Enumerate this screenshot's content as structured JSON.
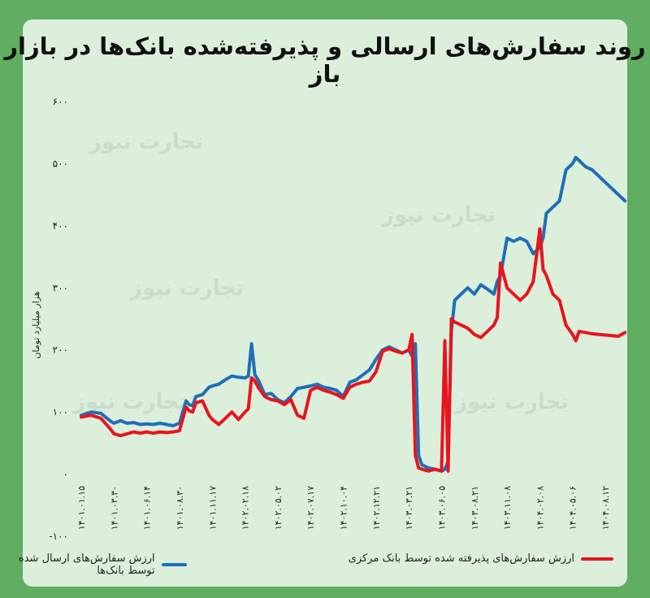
{
  "brand": {
    "watermark": "تجارت نیوز"
  },
  "colors": {
    "sent": "#1f6fb8",
    "accepted": "#e8141e",
    "background": "#5fae62",
    "card": "#dcefdb"
  },
  "chart_data": {
    "type": "line",
    "title": "روند سفارش‌های ارسالی و پذیرفته‌شده بانک‌ها در بازار باز",
    "ylabel": "هزار میلیارد تومان",
    "xlabel": "",
    "ylim": [
      -100,
      600
    ],
    "yticks": [
      {
        "value": -100,
        "label": "-۱۰۰"
      },
      {
        "value": 0,
        "label": "۰"
      },
      {
        "value": 100,
        "label": "۱۰۰"
      },
      {
        "value": 200,
        "label": "۲۰۰"
      },
      {
        "value": 300,
        "label": "۳۰۰"
      },
      {
        "value": 400,
        "label": "۴۰۰"
      },
      {
        "value": 500,
        "label": "۵۰۰"
      },
      {
        "value": 600,
        "label": "۶۰۰"
      }
    ],
    "categories": [
      "۱۴۰۱.۰۱.۱۵",
      "۱۴۰۱.۰۳.۳۰",
      "۱۴۰۱.۰۶.۱۴",
      "۱۴۰۱.۰۸.۳۰",
      "۱۴۰۱.۱۱.۱۷",
      "۱۴۰۲.۰۲.۱۸",
      "۱۴۰۲.۰۵.۰۲",
      "۱۴۰۲.۰۷.۱۷",
      "۱۴۰۲.۱۰.۰۴",
      "۱۴۰۲.۱۲.۲۱",
      "۱۴۰۳.۰۳.۲۱",
      "۱۴۰۳.۰۶.۰۵",
      "۱۴۰۳.۰۸.۲۱",
      "۱۴۰۳.۱۱.۰۸",
      "۱۴۰۴.۰۲.۰۸",
      "۱۴۰۴.۰۵.۰۶",
      "۱۴۰۴.۰۸.۱۲"
    ],
    "legend_position": "bottom",
    "grid": false,
    "series": [
      {
        "name": "ارزش سفارش‌های ارسال شده توسط بانک‌ها",
        "color": "#1f6fb8",
        "x": [
          0,
          0.3,
          0.6,
          0.9,
          1.0,
          1.2,
          1.4,
          1.6,
          1.8,
          2.0,
          2.2,
          2.4,
          2.6,
          2.8,
          3.0,
          3.2,
          3.3,
          3.4,
          3.5,
          3.7,
          3.9,
          4.0,
          4.2,
          4.4,
          4.6,
          4.8,
          5.0,
          5.1,
          5.2,
          5.3,
          5.4,
          5.6,
          5.8,
          6.0,
          6.2,
          6.4,
          6.6,
          6.8,
          7.0,
          7.2,
          7.4,
          7.6,
          7.8,
          8.0,
          8.2,
          8.4,
          8.6,
          8.8,
          9.0,
          9.2,
          9.4,
          9.6,
          9.8,
          10.0,
          10.1,
          10.2,
          10.3,
          10.4,
          10.6,
          10.8,
          11.0,
          11.1,
          11.2,
          11.3,
          11.4,
          11.6,
          11.8,
          12.0,
          12.2,
          12.4,
          12.6,
          12.7,
          12.8,
          13.0,
          13.2,
          13.4,
          13.6,
          13.8,
          14.0,
          14.1,
          14.2,
          14.4,
          14.6,
          14.8,
          15.0,
          15.1,
          15.2,
          15.4,
          15.6,
          15.8,
          16.0,
          16.2,
          16.4,
          16.6
        ],
        "values": [
          95,
          100,
          98,
          85,
          82,
          86,
          82,
          83,
          80,
          81,
          80,
          82,
          80,
          78,
          82,
          118,
          112,
          110,
          125,
          128,
          140,
          142,
          145,
          152,
          158,
          156,
          155,
          158,
          210,
          160,
          152,
          128,
          130,
          120,
          115,
          125,
          138,
          140,
          142,
          145,
          140,
          138,
          135,
          125,
          148,
          152,
          160,
          168,
          185,
          200,
          205,
          200,
          195,
          200,
          190,
          210,
          30,
          15,
          10,
          8,
          5,
          8,
          20,
          230,
          280,
          290,
          300,
          290,
          305,
          298,
          290,
          310,
          320,
          380,
          375,
          380,
          375,
          355,
          365,
          380,
          420,
          430,
          440,
          490,
          500,
          510,
          505,
          495,
          490,
          480,
          470,
          460,
          450,
          440
        ]
      },
      {
        "name": "ارزش سفارش‌های پذیرفته شده توسط بانک مرکزی",
        "color": "#e8141e",
        "x": [
          0,
          0.3,
          0.6,
          0.9,
          1.0,
          1.2,
          1.4,
          1.6,
          1.8,
          2.0,
          2.2,
          2.4,
          2.6,
          2.8,
          3.0,
          3.2,
          3.3,
          3.4,
          3.5,
          3.7,
          3.9,
          4.0,
          4.2,
          4.4,
          4.6,
          4.8,
          5.0,
          5.1,
          5.2,
          5.3,
          5.4,
          5.6,
          5.8,
          6.0,
          6.2,
          6.4,
          6.6,
          6.8,
          7.0,
          7.2,
          7.4,
          7.6,
          7.8,
          8.0,
          8.2,
          8.4,
          8.6,
          8.8,
          9.0,
          9.2,
          9.4,
          9.6,
          9.8,
          10.0,
          10.1,
          10.2,
          10.3,
          10.4,
          10.6,
          10.8,
          11.0,
          11.1,
          11.2,
          11.3,
          11.4,
          11.6,
          11.8,
          12.0,
          12.2,
          12.4,
          12.6,
          12.7,
          12.8,
          13.0,
          13.2,
          13.4,
          13.6,
          13.8,
          14.0,
          14.1,
          14.2,
          14.4,
          14.6,
          14.8,
          15.0,
          15.1,
          15.2,
          15.4,
          15.6,
          15.8,
          16.0,
          16.2,
          16.4,
          16.6
        ],
        "values": [
          92,
          95,
          90,
          72,
          65,
          62,
          65,
          68,
          66,
          68,
          66,
          68,
          67,
          68,
          70,
          108,
          102,
          100,
          115,
          118,
          95,
          88,
          80,
          90,
          100,
          88,
          100,
          105,
          155,
          150,
          140,
          125,
          120,
          118,
          112,
          120,
          95,
          90,
          135,
          140,
          135,
          132,
          128,
          122,
          140,
          145,
          148,
          150,
          165,
          198,
          202,
          198,
          195,
          200,
          225,
          30,
          10,
          8,
          5,
          8,
          5,
          215,
          5,
          250,
          245,
          240,
          235,
          225,
          220,
          230,
          240,
          252,
          340,
          300,
          290,
          280,
          290,
          310,
          395,
          330,
          320,
          290,
          280,
          240,
          225,
          215,
          230,
          228,
          226,
          225,
          224,
          223,
          222,
          228
        ]
      }
    ]
  }
}
